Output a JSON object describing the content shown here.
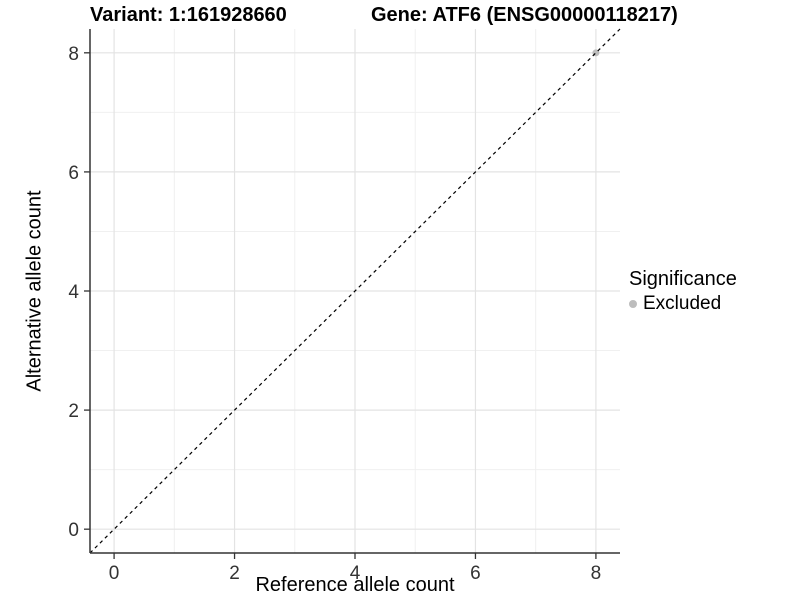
{
  "chart_data": {
    "type": "scatter",
    "titles": {
      "variant": "Variant: 1:161928660",
      "gene": "Gene: ATF6 (ENSG00000118217)"
    },
    "xlabel": "Reference allele count",
    "ylabel": "Alternative allele count",
    "xlim": [
      -0.4,
      8.4
    ],
    "ylim": [
      -0.4,
      8.4
    ],
    "xticks": [
      0,
      2,
      4,
      6,
      8
    ],
    "yticks": [
      0,
      2,
      4,
      6,
      8
    ],
    "xticks_minor": [
      1,
      3,
      5,
      7
    ],
    "yticks_minor": [
      1,
      3,
      5,
      7
    ],
    "grid": {
      "on": true,
      "major_color": "#e3e3e3",
      "minor_color": "#f0f0f0"
    },
    "axis_color": "#333333",
    "identity_line": {
      "style": "dashed",
      "color": "#000000",
      "slope": 1,
      "intercept": 0
    },
    "series": [
      {
        "name": "Excluded",
        "color": "#bdbdbd",
        "points": [
          {
            "x": 8,
            "y": 8
          }
        ]
      }
    ],
    "legend": {
      "title": "Significance",
      "position": "right",
      "items": [
        {
          "label": "Excluded",
          "color": "#bdbdbd"
        }
      ]
    }
  }
}
